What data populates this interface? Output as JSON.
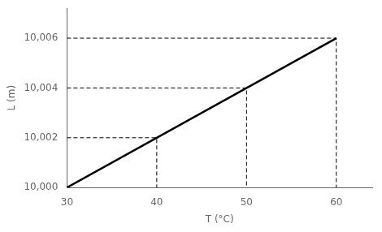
{
  "chart_data": {
    "type": "line",
    "x": [
      30,
      60
    ],
    "values": [
      10000,
      10006
    ],
    "color": "#000000",
    "reference_points": {
      "x": [
        40,
        50,
        60
      ],
      "y": [
        10002,
        10004,
        10006
      ],
      "color": "#000000",
      "line_style": "dashed"
    },
    "xlabel": "T (°C)",
    "ylabel": "L (m)",
    "xlim": [
      30,
      64
    ],
    "ylim": [
      10000,
      10007.2
    ],
    "xticks": [
      30,
      40,
      50,
      60
    ],
    "yticks": [
      {
        "value": 10000,
        "label": "10,000"
      },
      {
        "value": 10002,
        "label": "10,002"
      },
      {
        "value": 10004,
        "label": "10,004"
      },
      {
        "value": 10006,
        "label": "10,006"
      }
    ],
    "grid": false
  }
}
